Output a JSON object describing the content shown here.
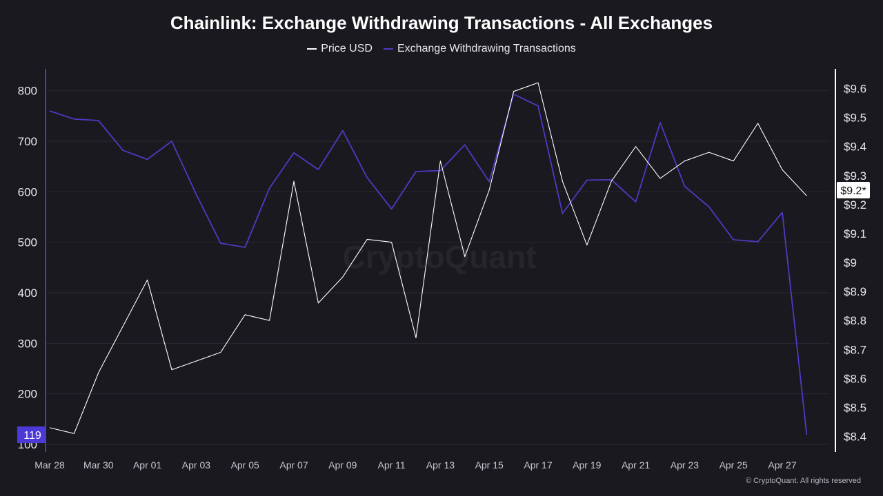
{
  "title": "Chainlink: Exchange Withdrawing Transactions - All Exchanges",
  "watermark": "CryptoQuant",
  "copyright": "© CryptoQuant. All rights reserved",
  "colors": {
    "background": "#1a191f",
    "price": "#ffffff",
    "transactions": "#4c3bc4",
    "left_axis": "#4a3bbf",
    "grid": "#2a2930"
  },
  "chart_data": {
    "type": "line",
    "title": "Chainlink: Exchange Withdrawing Transactions - All Exchanges",
    "x": [
      "Mar 28",
      "Mar 29",
      "Mar 30",
      "Mar 31",
      "Apr 01",
      "Apr 02",
      "Apr 03",
      "Apr 04",
      "Apr 05",
      "Apr 06",
      "Apr 07",
      "Apr 08",
      "Apr 09",
      "Apr 10",
      "Apr 11",
      "Apr 12",
      "Apr 13",
      "Apr 14",
      "Apr 15",
      "Apr 16",
      "Apr 17",
      "Apr 18",
      "Apr 19",
      "Apr 20",
      "Apr 21",
      "Apr 22",
      "Apr 23",
      "Apr 24",
      "Apr 25",
      "Apr 26",
      "Apr 27",
      "Apr 28"
    ],
    "x_tick_labels": [
      "Mar 28",
      "Mar 30",
      "Apr 01",
      "Apr 03",
      "Apr 05",
      "Apr 07",
      "Apr 09",
      "Apr 11",
      "Apr 13",
      "Apr 15",
      "Apr 17",
      "Apr 19",
      "Apr 21",
      "Apr 23",
      "Apr 25",
      "Apr 27"
    ],
    "series": [
      {
        "name": "Price USD",
        "axis": "right",
        "values": [
          8.43,
          8.41,
          8.62,
          8.78,
          8.94,
          8.63,
          8.66,
          8.69,
          8.82,
          8.8,
          9.28,
          8.86,
          8.95,
          9.08,
          9.07,
          8.74,
          9.35,
          9.02,
          9.25,
          9.59,
          9.62,
          9.28,
          9.06,
          9.28,
          9.4,
          9.29,
          9.35,
          9.38,
          9.35,
          9.48,
          9.32,
          9.23
        ]
      },
      {
        "name": "Exchange Withdrawing Transactions",
        "axis": "left",
        "values": [
          760,
          744,
          741,
          682,
          664,
          700,
          595,
          498,
          490,
          607,
          677,
          644,
          721,
          628,
          566,
          640,
          642,
          693,
          620,
          793,
          770,
          557,
          623,
          624,
          580,
          737,
          611,
          570,
          505,
          501,
          559,
          119
        ]
      }
    ],
    "y_left": {
      "ticks": [
        100,
        200,
        300,
        400,
        500,
        600,
        700,
        800
      ],
      "range": [
        100,
        840
      ]
    },
    "y_right": {
      "ticks": [
        "$8.4",
        "$8.5",
        "$8.6",
        "$8.7",
        "$8.8",
        "$8.9",
        "$9",
        "$9.1",
        "$9.2",
        "$9.3",
        "$9.4",
        "$9.5",
        "$9.6"
      ],
      "tick_values": [
        8.4,
        8.5,
        8.6,
        8.7,
        8.8,
        8.9,
        9.0,
        9.1,
        9.2,
        9.3,
        9.4,
        9.5,
        9.6
      ],
      "range": [
        8.4,
        9.6
      ]
    },
    "markers": {
      "left_last_value": "119",
      "right_last_value": "$9.2*"
    },
    "grid": true,
    "legend_position": "top-center"
  }
}
